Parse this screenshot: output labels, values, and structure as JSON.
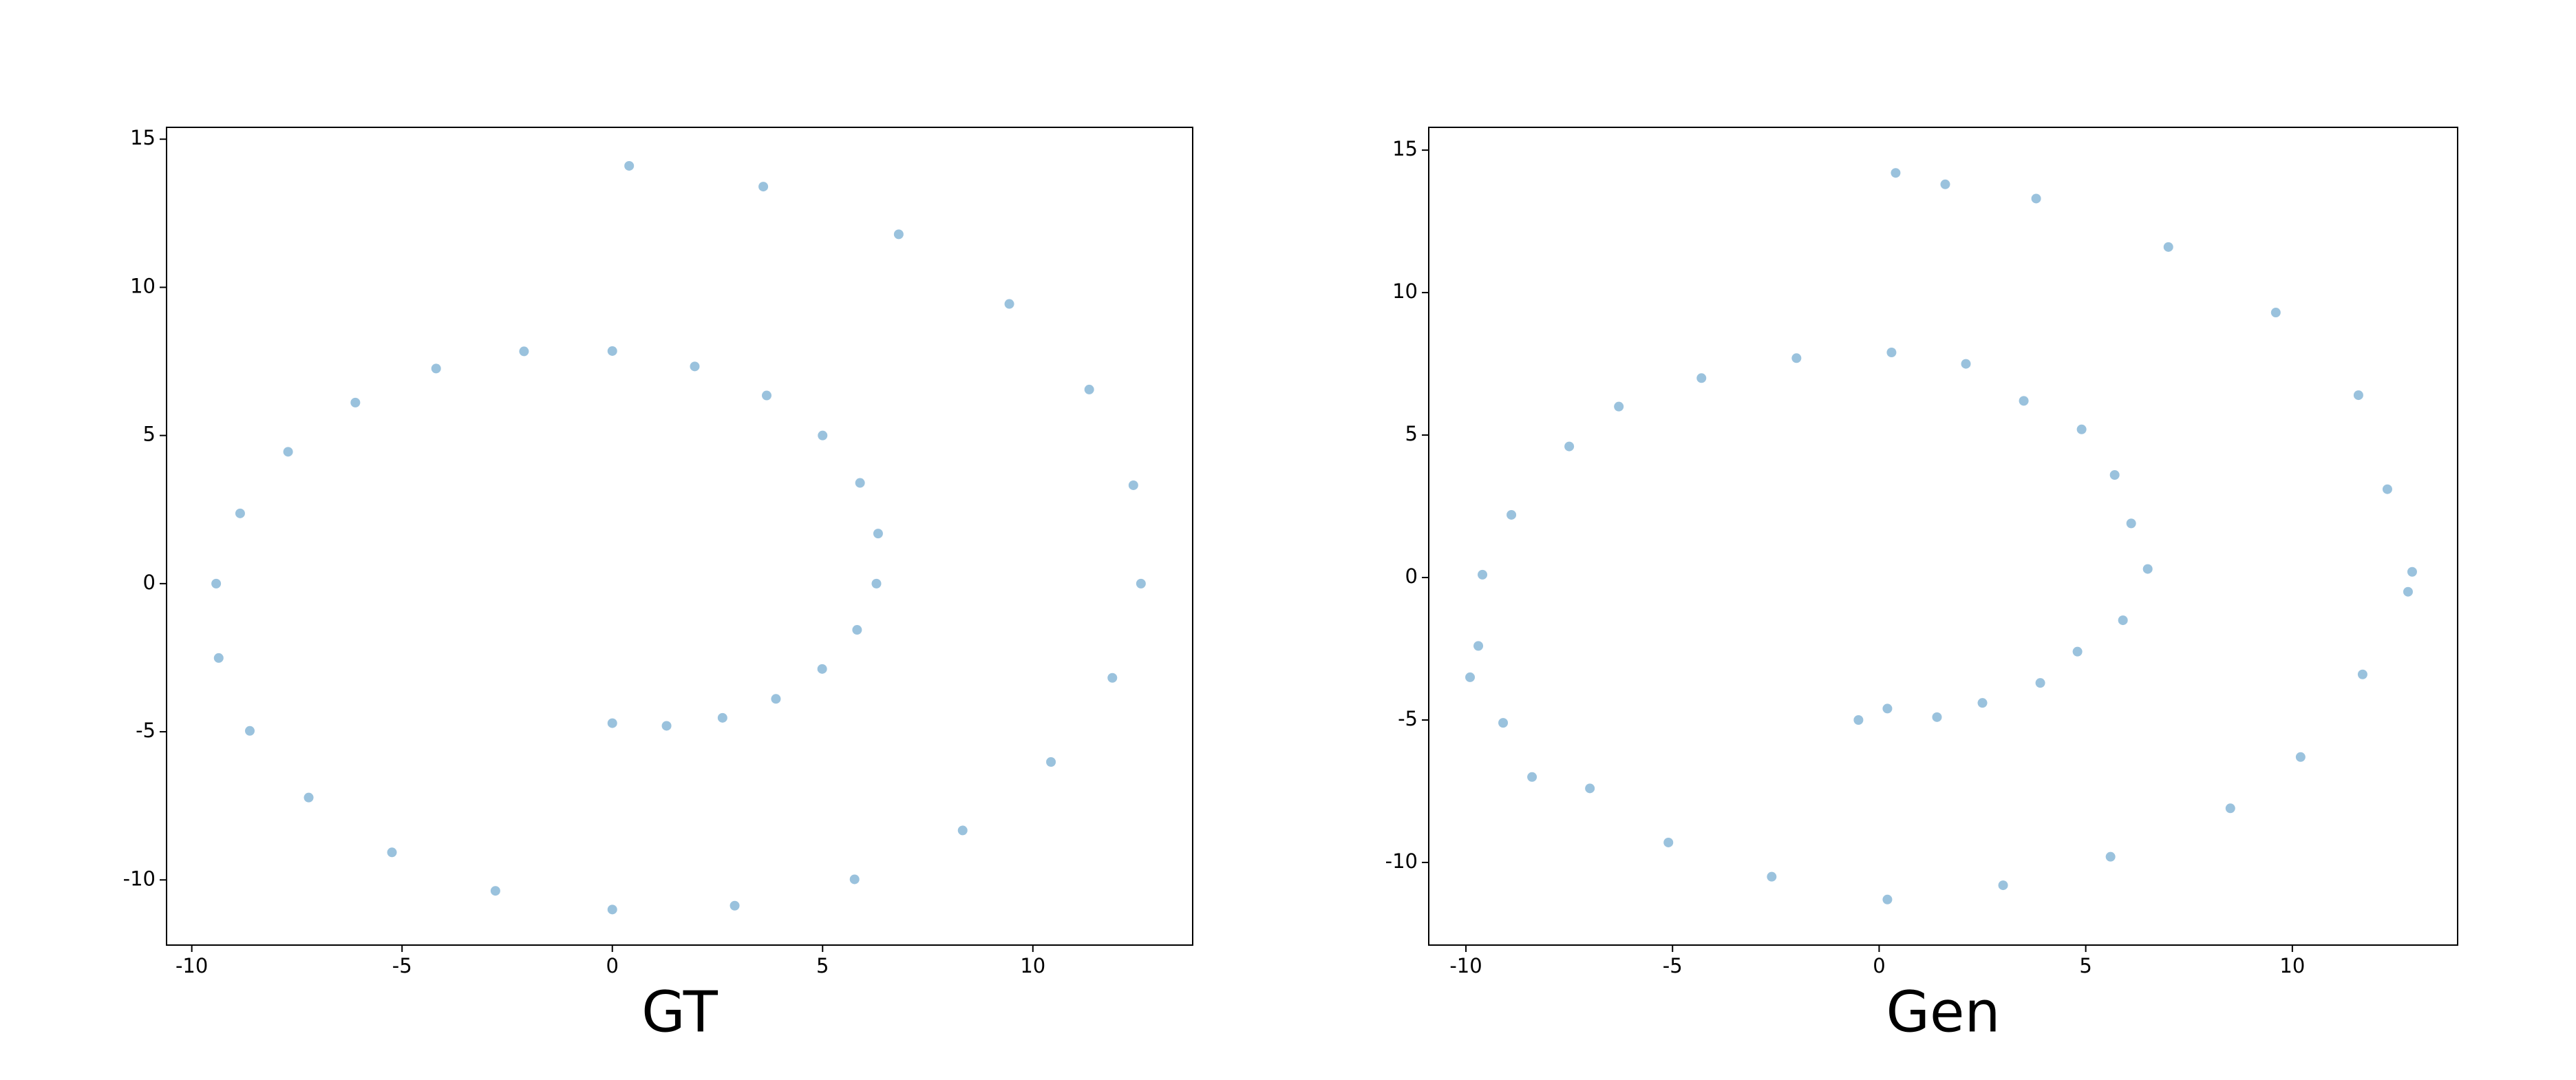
{
  "chart_data": [
    {
      "type": "scatter",
      "title": "GT",
      "color": "#1f77b4",
      "xlim": [
        -10.6,
        13.8
      ],
      "ylim": [
        -12.2,
        15.4
      ],
      "xticks": [
        -10,
        -5,
        0,
        5,
        10
      ],
      "yticks": [
        -10,
        -5,
        0,
        5,
        10,
        15
      ],
      "x": [
        0,
        1.29,
        2.62,
        3.89,
        4.99,
        5.82,
        6.28,
        6.32,
        5.89,
        5.0,
        3.67,
        1.96,
        0,
        -2.1,
        -4.19,
        -6.11,
        -7.71,
        -8.85,
        -9.42,
        -9.36,
        -8.62,
        -7.22,
        -5.24,
        -2.78,
        0,
        2.91,
        5.76,
        8.33,
        10.43,
        11.89,
        12.57,
        12.39,
        11.34,
        9.44,
        6.81,
        3.59,
        0.4
      ],
      "values": [
        -4.71,
        -4.8,
        -4.53,
        -3.89,
        -2.88,
        -1.56,
        0,
        1.69,
        3.4,
        5.0,
        6.35,
        7.33,
        7.85,
        7.84,
        7.26,
        6.11,
        4.45,
        2.37,
        0,
        -2.51,
        -4.97,
        -7.22,
        -9.07,
        -10.37,
        -11.0,
        -10.87,
        -9.98,
        -8.33,
        -6.02,
        -3.18,
        0,
        3.32,
        6.55,
        9.44,
        11.79,
        13.4,
        14.1
      ]
    },
    {
      "type": "scatter",
      "title": "Gen",
      "color": "#1f77b4",
      "xlim": [
        -10.9,
        14.0
      ],
      "ylim": [
        -12.9,
        15.8
      ],
      "xticks": [
        -10,
        -5,
        0,
        5,
        10
      ],
      "yticks": [
        -10,
        -5,
        0,
        5,
        10,
        15
      ],
      "x": [
        -0.5,
        0.2,
        1.4,
        2.5,
        3.9,
        4.8,
        5.9,
        6.5,
        6.1,
        5.7,
        4.9,
        3.5,
        2.1,
        0.3,
        -2.0,
        -4.3,
        -6.3,
        -7.5,
        -8.9,
        -9.6,
        -9.7,
        -9.1,
        -8.4,
        -7.0,
        -5.1,
        -2.6,
        0.2,
        3.0,
        5.6,
        8.5,
        10.2,
        11.7,
        12.8,
        12.3,
        11.6,
        9.6,
        7.0,
        3.8,
        0.4,
        1.6,
        -9.9,
        12.9
      ],
      "values": [
        -5.0,
        -4.6,
        -4.9,
        -4.4,
        -3.7,
        -2.6,
        -1.5,
        0.3,
        1.9,
        3.6,
        5.2,
        6.2,
        7.5,
        7.9,
        7.7,
        7.0,
        6.0,
        4.6,
        2.2,
        0.1,
        -2.4,
        -5.1,
        -7.0,
        -7.4,
        -9.3,
        -10.5,
        -11.3,
        -10.8,
        -9.8,
        -8.1,
        -6.3,
        -3.4,
        -0.5,
        3.1,
        6.4,
        9.3,
        11.6,
        13.3,
        14.2,
        13.8,
        -3.5,
        0.2
      ]
    }
  ]
}
